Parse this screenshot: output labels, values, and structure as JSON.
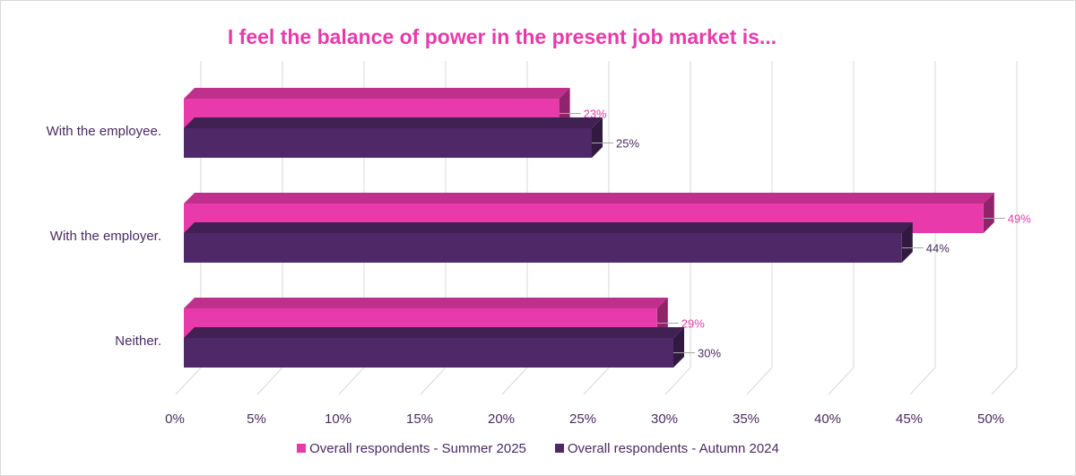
{
  "chart_data": {
    "type": "bar",
    "orientation": "horizontal",
    "style": "3d-clustered",
    "title": "I feel the balance of power in the present job market is...",
    "categories": [
      "With the employee.",
      "With the employer.",
      "Neither."
    ],
    "series": [
      {
        "name": "Overall respondents - Summer 2025",
        "color": "#e83aab",
        "values": [
          23,
          49,
          29
        ],
        "labels": [
          "23%",
          "49%",
          "29%"
        ]
      },
      {
        "name": "Overall respondents - Autumn 2024",
        "color": "#4f2867",
        "values": [
          25,
          44,
          30
        ],
        "labels": [
          "25%",
          "44%",
          "30%"
        ]
      }
    ],
    "xlim": [
      0,
      50
    ],
    "xticks": [
      "0%",
      "5%",
      "10%",
      "15%",
      "20%",
      "25%",
      "30%",
      "35%",
      "40%",
      "45%",
      "50%"
    ],
    "grid": true,
    "legend_position": "bottom"
  }
}
